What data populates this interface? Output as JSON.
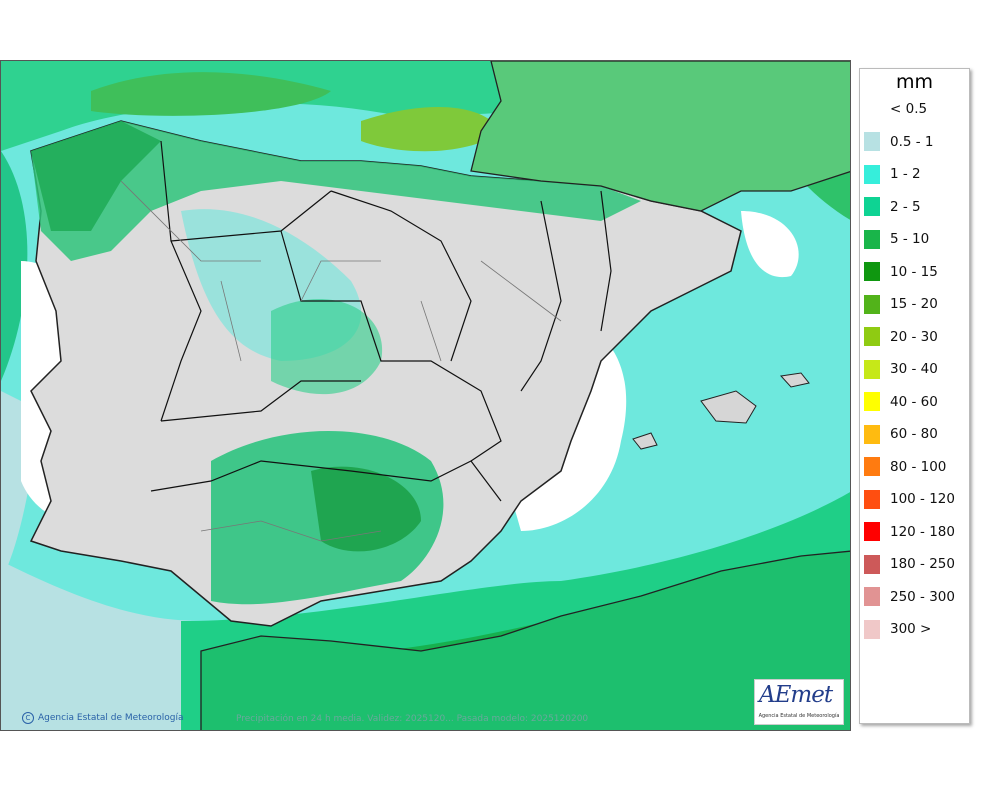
{
  "legend": {
    "unit": "mm",
    "items": [
      {
        "label": "< 0.5",
        "color": "#ffffff"
      },
      {
        "label": "0.5 - 1",
        "color": "#b7e1e3"
      },
      {
        "label": "1 - 2",
        "color": "#36eedb"
      },
      {
        "label": "2 - 5",
        "color": "#0ed393"
      },
      {
        "label": "5 - 10",
        "color": "#19b54a"
      },
      {
        "label": "10 - 15",
        "color": "#0f9710"
      },
      {
        "label": "15 - 20",
        "color": "#52b31a"
      },
      {
        "label": "20 - 30",
        "color": "#8fcb12"
      },
      {
        "label": "30 - 40",
        "color": "#c6e818"
      },
      {
        "label": "40 - 60",
        "color": "#ffff00"
      },
      {
        "label": "60 - 80",
        "color": "#ffbb10"
      },
      {
        "label": "80 - 100",
        "color": "#ff7b10"
      },
      {
        "label": "100 - 120",
        "color": "#ff4e10"
      },
      {
        "label": "120 - 180",
        "color": "#ff0000"
      },
      {
        "label": "180 - 250",
        "color": "#cd5959"
      },
      {
        "label": "250 - 300",
        "color": "#e19393"
      },
      {
        "label": "300 >",
        "color": "#f0c8c8"
      }
    ]
  },
  "footer": {
    "credit_symbol": "C",
    "credit": "Agencia Estatal de Meteorología",
    "caption": "Precipitación en 24 h media. Validez: 2025120... Pasada modelo: 2025120200"
  },
  "logo": {
    "text": "AEmet",
    "subtitle": "Agencia Estatal de Meteorología"
  }
}
